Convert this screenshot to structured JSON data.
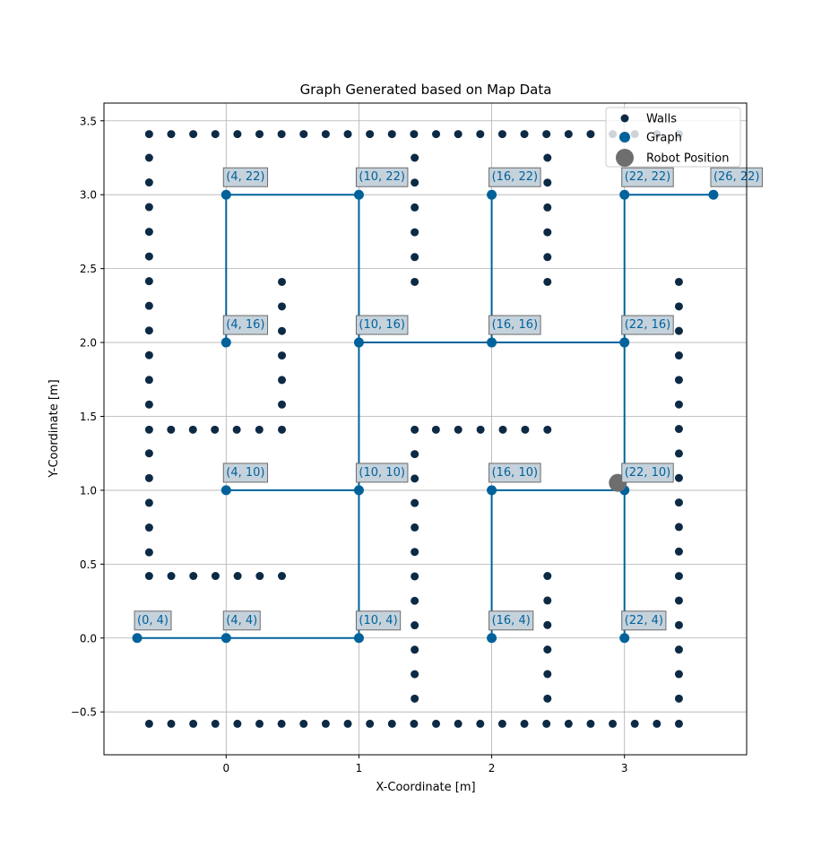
{
  "chart_data": {
    "type": "scatter",
    "title": "Graph Generated based on Map Data",
    "xlabel": "X-Coordinate [m]",
    "ylabel": "Y-Coordinate [m]",
    "xlim": [
      -0.92,
      3.92
    ],
    "ylim": [
      -0.79,
      3.62
    ],
    "xticks": [
      0,
      1,
      2,
      3
    ],
    "yticks": [
      -0.5,
      0.0,
      0.5,
      1.0,
      1.5,
      2.0,
      2.5,
      3.0,
      3.5
    ],
    "xtick_labels": [
      "0",
      "1",
      "2",
      "3"
    ],
    "ytick_labels": [
      "−0.5",
      "0.0",
      "0.5",
      "1.0",
      "1.5",
      "2.0",
      "2.5",
      "3.0",
      "3.5"
    ],
    "grid": true,
    "legend": {
      "placement": "top-right",
      "entries": [
        {
          "label": "Walls",
          "marker": "small-dot",
          "color": "#0d2a45"
        },
        {
          "label": "Graph",
          "marker": "dot",
          "color": "#00629b"
        },
        {
          "label": "Robot Position",
          "marker": "large-dot",
          "color": "#6e6e6e"
        }
      ]
    },
    "colors": {
      "walls": "#0d2a45",
      "graph": "#00629b",
      "robot": "#6e6e6e",
      "label_box_fill": "#c5d2dc",
      "label_box_edge": "#6b6b6b",
      "grid": "#b0b0b0"
    },
    "walls": [
      {
        "from": [
          -0.58,
          3.41
        ],
        "to": [
          3.41,
          3.41
        ],
        "step": 0.1665
      },
      {
        "from": [
          -0.58,
          -0.58
        ],
        "to": [
          3.41,
          -0.58
        ],
        "step": 0.1665
      },
      {
        "from": [
          -0.58,
          3.25
        ],
        "to": [
          -0.58,
          1.58
        ],
        "step": 0.1667
      },
      {
        "from": [
          -0.58,
          1.25
        ],
        "to": [
          -0.58,
          0.58
        ],
        "step": 0.1667
      },
      {
        "from": [
          -0.58,
          1.41
        ],
        "to": [
          0.08,
          1.41
        ],
        "step": 0.1667
      },
      {
        "from": [
          0.25,
          1.41
        ],
        "to": [
          0.42,
          1.41
        ],
        "step": 0.1667
      },
      {
        "from": [
          -0.58,
          0.42
        ],
        "to": [
          0.42,
          0.42
        ],
        "step": 0.1667
      },
      {
        "from": [
          0.42,
          2.41
        ],
        "to": [
          0.42,
          1.58
        ],
        "step": 0.1667
      },
      {
        "from": [
          1.42,
          3.25
        ],
        "to": [
          1.42,
          2.41
        ],
        "step": 0.1667
      },
      {
        "from": [
          1.42,
          1.41
        ],
        "to": [
          1.42,
          -0.41
        ],
        "step": 0.1667
      },
      {
        "from": [
          1.58,
          1.41
        ],
        "to": [
          2.42,
          1.41
        ],
        "step": 0.1667
      },
      {
        "from": [
          2.42,
          3.25
        ],
        "to": [
          2.42,
          2.41
        ],
        "step": 0.1667
      },
      {
        "from": [
          2.42,
          0.42
        ],
        "to": [
          2.42,
          -0.41
        ],
        "step": 0.1667
      },
      {
        "from": [
          3.41,
          2.41
        ],
        "to": [
          3.41,
          -0.41
        ],
        "step": 0.1667
      }
    ],
    "nodes": [
      {
        "label": "(0, 4)",
        "x": -0.67,
        "y": 0.0
      },
      {
        "label": "(4, 4)",
        "x": 0.0,
        "y": 0.0
      },
      {
        "label": "(10, 4)",
        "x": 1.0,
        "y": 0.0
      },
      {
        "label": "(16, 4)",
        "x": 2.0,
        "y": 0.0
      },
      {
        "label": "(22, 4)",
        "x": 3.0,
        "y": 0.0
      },
      {
        "label": "(4, 10)",
        "x": 0.0,
        "y": 1.0
      },
      {
        "label": "(10, 10)",
        "x": 1.0,
        "y": 1.0
      },
      {
        "label": "(16, 10)",
        "x": 2.0,
        "y": 1.0
      },
      {
        "label": "(22, 10)",
        "x": 3.0,
        "y": 1.0
      },
      {
        "label": "(4, 16)",
        "x": 0.0,
        "y": 2.0
      },
      {
        "label": "(10, 16)",
        "x": 1.0,
        "y": 2.0
      },
      {
        "label": "(16, 16)",
        "x": 2.0,
        "y": 2.0
      },
      {
        "label": "(22, 16)",
        "x": 3.0,
        "y": 2.0
      },
      {
        "label": "(4, 22)",
        "x": 0.0,
        "y": 3.0
      },
      {
        "label": "(10, 22)",
        "x": 1.0,
        "y": 3.0
      },
      {
        "label": "(16, 22)",
        "x": 2.0,
        "y": 3.0
      },
      {
        "label": "(22, 22)",
        "x": 3.0,
        "y": 3.0
      },
      {
        "label": "(26, 22)",
        "x": 3.67,
        "y": 3.0
      }
    ],
    "edges": [
      [
        "(0, 4)",
        "(4, 4)"
      ],
      [
        "(4, 4)",
        "(10, 4)"
      ],
      [
        "(10, 4)",
        "(10, 10)"
      ],
      [
        "(4, 10)",
        "(10, 10)"
      ],
      [
        "(10, 10)",
        "(10, 16)"
      ],
      [
        "(10, 16)",
        "(16, 16)"
      ],
      [
        "(16, 16)",
        "(22, 16)"
      ],
      [
        "(16, 4)",
        "(16, 10)"
      ],
      [
        "(16, 10)",
        "(22, 10)"
      ],
      [
        "(22, 4)",
        "(22, 10)"
      ],
      [
        "(22, 10)",
        "(22, 16)"
      ],
      [
        "(22, 16)",
        "(22, 22)"
      ],
      [
        "(22, 22)",
        "(26, 22)"
      ],
      [
        "(16, 16)",
        "(16, 22)"
      ],
      [
        "(4, 16)",
        "(4, 22)"
      ],
      [
        "(4, 22)",
        "(10, 22)"
      ],
      [
        "(10, 22)",
        "(10, 16)"
      ]
    ],
    "robot_position": {
      "x": 2.95,
      "y": 1.05
    }
  }
}
